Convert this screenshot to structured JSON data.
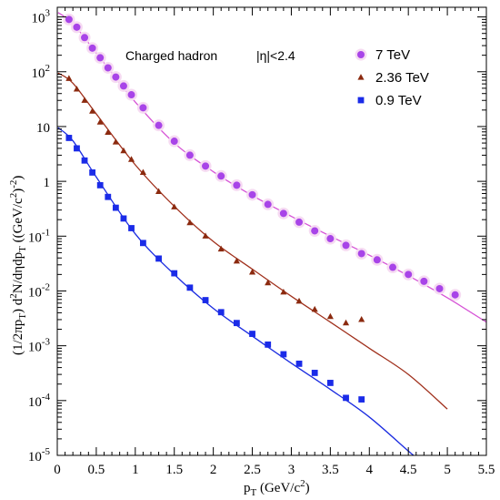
{
  "chart_data": {
    "type": "scatter",
    "x_axis": {
      "range": [
        0,
        5.5
      ],
      "ticks": [
        0,
        0.5,
        1,
        1.5,
        2,
        2.5,
        3,
        3.5,
        4,
        4.5,
        5,
        5.5
      ],
      "tick_labels": [
        "0",
        "0.5",
        "1",
        "1.5",
        "2",
        "2.5",
        "3",
        "3.5",
        "4",
        "4.5",
        "5",
        "5.5"
      ]
    },
    "y_axis": {
      "scale": "log",
      "range": [
        1e-05,
        1500
      ],
      "ticks": [
        1e-05,
        0.0001,
        0.001,
        0.01,
        0.1,
        1,
        10,
        100,
        1000
      ],
      "tick_labels": [
        {
          "base": "10",
          "exp": "-5"
        },
        {
          "base": "10",
          "exp": "-4"
        },
        {
          "base": "10",
          "exp": "-3"
        },
        {
          "base": "10",
          "exp": "-2"
        },
        {
          "base": "10",
          "exp": "-1"
        },
        {
          "base": "1",
          "exp": ""
        },
        {
          "base": "10",
          "exp": ""
        },
        {
          "base": "10",
          "exp": "2"
        },
        {
          "base": "10",
          "exp": "3"
        }
      ]
    },
    "xlabel": {
      "main": "p",
      "sub": "T",
      "rest": " (GeV/c",
      "sup": "2",
      "close": ")"
    },
    "ylabel": {
      "p1": "(1/2πp",
      "s1": "T",
      "p2": ") d",
      "e1": "2",
      "p3": "N/dηdp",
      "s2": "T",
      "p4": " ((GeV/c",
      "e2": "2",
      "p5": ")",
      "e3": "-2",
      "p6": ")"
    },
    "annotations": [
      "Charged hadron",
      "|η|<2.4"
    ],
    "legend": {
      "placement": "top-right"
    },
    "series": [
      {
        "name": "7 TeV",
        "marker": "circle",
        "color": "#a844e8",
        "fit_color": "#d653d6",
        "x": [
          0.15,
          0.25,
          0.35,
          0.45,
          0.55,
          0.65,
          0.75,
          0.85,
          0.95,
          1.1,
          1.3,
          1.5,
          1.7,
          1.9,
          2.1,
          2.3,
          2.5,
          2.7,
          2.9,
          3.1,
          3.3,
          3.5,
          3.7,
          3.9,
          4.1,
          4.3,
          4.5,
          4.7,
          4.9,
          5.1
        ],
        "y": [
          900,
          650,
          420,
          270,
          180,
          118,
          80,
          55,
          38,
          22,
          10.5,
          5.4,
          3.0,
          1.9,
          1.25,
          0.85,
          0.57,
          0.38,
          0.26,
          0.18,
          0.125,
          0.09,
          0.068,
          0.048,
          0.037,
          0.027,
          0.02,
          0.015,
          0.011,
          0.0085
        ],
        "fit": [
          [
            0.01,
            1200
          ],
          [
            0.2,
            760
          ],
          [
            0.5,
            220
          ],
          [
            1.0,
            28
          ],
          [
            1.5,
            5.0
          ],
          [
            2.0,
            1.5
          ],
          [
            2.5,
            0.55
          ],
          [
            3.0,
            0.23
          ],
          [
            3.5,
            0.1
          ],
          [
            4.0,
            0.045
          ],
          [
            4.5,
            0.019
          ],
          [
            5.0,
            0.0075
          ],
          [
            5.5,
            0.0027
          ]
        ]
      },
      {
        "name": "2.36 TeV",
        "marker": "triangle",
        "color": "#8b2a0f",
        "fit_color": "#a0301c",
        "x": [
          0.15,
          0.25,
          0.35,
          0.45,
          0.55,
          0.65,
          0.75,
          0.85,
          0.95,
          1.1,
          1.3,
          1.5,
          1.7,
          1.9,
          2.1,
          2.3,
          2.5,
          2.7,
          2.9,
          3.1,
          3.3,
          3.5,
          3.7,
          3.9
        ],
        "y": [
          75,
          48,
          30,
          19,
          12,
          7.8,
          5.2,
          3.6,
          2.5,
          1.45,
          0.65,
          0.34,
          0.175,
          0.1,
          0.058,
          0.035,
          0.022,
          0.014,
          0.0095,
          0.0065,
          0.0046,
          0.0034,
          0.0026,
          0.003
        ],
        "fit": [
          [
            0.01,
            95
          ],
          [
            0.2,
            62
          ],
          [
            0.5,
            17
          ],
          [
            1.0,
            2.0
          ],
          [
            1.5,
            0.35
          ],
          [
            2.0,
            0.08
          ],
          [
            2.5,
            0.025
          ],
          [
            3.0,
            0.008
          ],
          [
            3.5,
            0.0027
          ],
          [
            4.0,
            0.0009
          ],
          [
            4.5,
            0.0003
          ],
          [
            5.0,
            7e-05
          ]
        ]
      },
      {
        "name": "0.9 TeV",
        "marker": "square",
        "color": "#1a2be8",
        "fit_color": "#1a2be0",
        "x": [
          0.15,
          0.25,
          0.35,
          0.45,
          0.55,
          0.65,
          0.75,
          0.85,
          0.95,
          1.1,
          1.3,
          1.5,
          1.7,
          1.9,
          2.1,
          2.3,
          2.5,
          2.7,
          2.9,
          3.1,
          3.3,
          3.5,
          3.7,
          3.9
        ],
        "y": [
          6.2,
          4.0,
          2.4,
          1.45,
          0.85,
          0.52,
          0.33,
          0.21,
          0.14,
          0.075,
          0.039,
          0.021,
          0.0115,
          0.0068,
          0.0041,
          0.0026,
          0.00165,
          0.00105,
          0.0007,
          0.00047,
          0.00032,
          0.00021,
          0.000112,
          0.000105
        ],
        "fit": [
          [
            0.01,
            9.5
          ],
          [
            0.2,
            5.5
          ],
          [
            0.5,
            1.2
          ],
          [
            1.0,
            0.11
          ],
          [
            1.5,
            0.02
          ],
          [
            2.0,
            0.0048
          ],
          [
            2.5,
            0.0015
          ],
          [
            3.0,
            0.00048
          ],
          [
            3.5,
            0.00016
          ],
          [
            4.0,
            5e-05
          ],
          [
            4.5,
            1.2e-05
          ],
          [
            4.6,
            9.2e-06
          ]
        ]
      }
    ]
  }
}
